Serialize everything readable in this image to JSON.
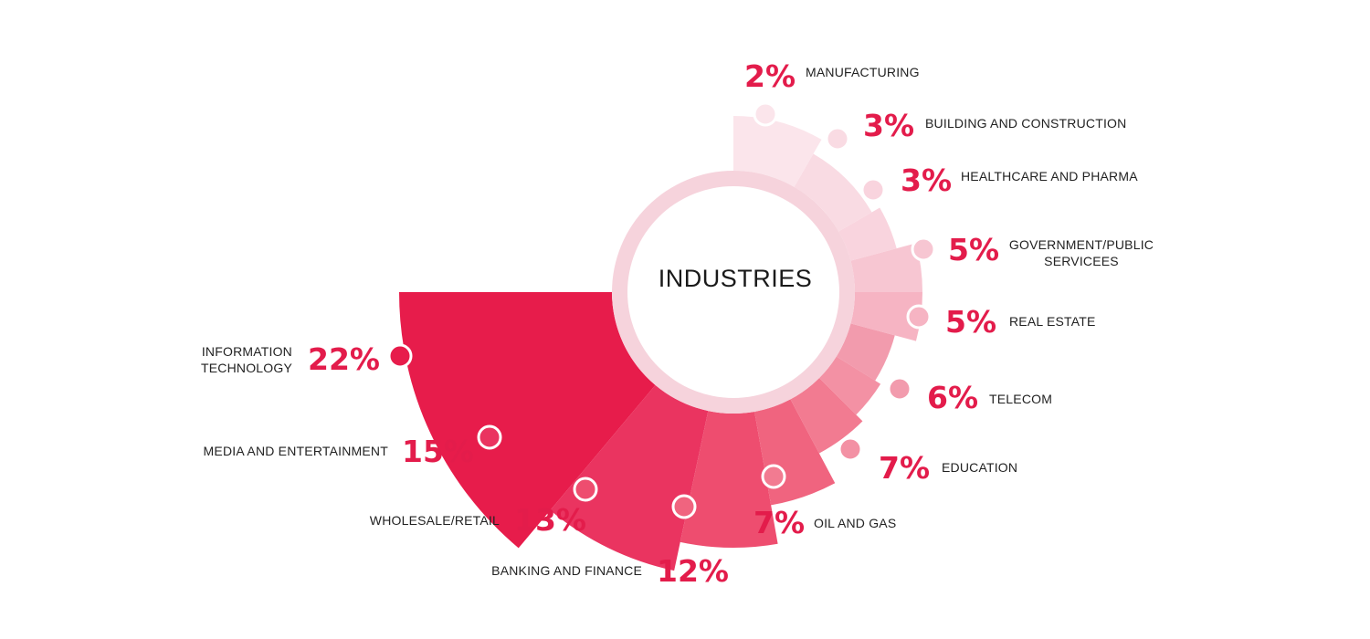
{
  "chart_data": {
    "type": "pie",
    "title": "INDUSTRIES",
    "categories": [
      "INFORMATION TECHNOLOGY",
      "MEDIA AND ENTERTAINMENT",
      "WHOLESALE/RETAIL",
      "BANKING AND FINANCE",
      "OIL AND GAS",
      "EDUCATION",
      "TELECOM",
      "REAL ESTATE",
      "GOVERNMENT/PUBLIC SERVICEES",
      "HEALTHCARE AND PHARMA",
      "BUILDING AND CONSTRUCTION",
      "MANUFACTURING"
    ],
    "values": [
      22,
      15,
      13,
      12,
      7,
      7,
      6,
      5,
      5,
      3,
      3,
      2
    ],
    "value_labels": [
      "22%",
      "15%",
      "13%",
      "12%",
      "7%",
      "7%",
      "6%",
      "5%",
      "5%",
      "3%",
      "3%",
      "2%"
    ],
    "colors": [
      "#e71c4b",
      "#ea3460",
      "#ee4d6f",
      "#f0647f",
      "#f27b91",
      "#f391a4",
      "#f29bad",
      "#f6b4c3",
      "#f7c6d2",
      "#f9d4de",
      "#f9dbe3",
      "#fbe5eb"
    ],
    "legend": "none"
  }
}
